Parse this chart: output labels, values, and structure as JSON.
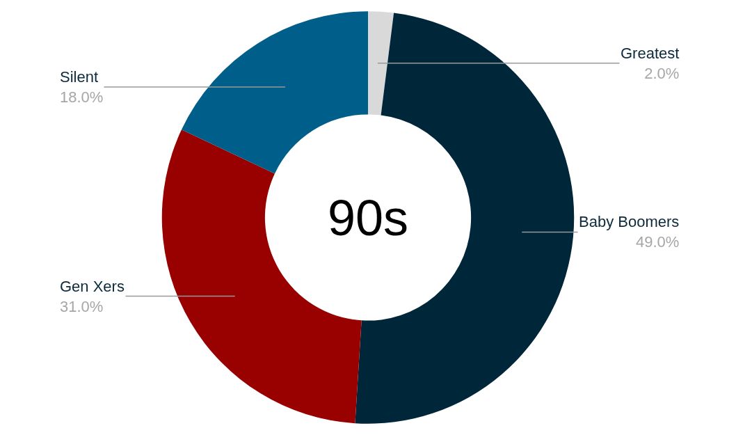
{
  "chart_data": {
    "type": "donut",
    "categories": [
      "Greatest",
      "Baby Boomers",
      "Gen Xers",
      "Silent"
    ],
    "values": [
      2,
      49,
      31,
      18
    ],
    "value_labels": [
      "2.0%",
      "49.0%",
      "31.0%",
      "18.0%"
    ],
    "colors": [
      "#d9d9d9",
      "#002639",
      "#990000",
      "#005f8a"
    ],
    "annotations": [
      "90s"
    ]
  }
}
